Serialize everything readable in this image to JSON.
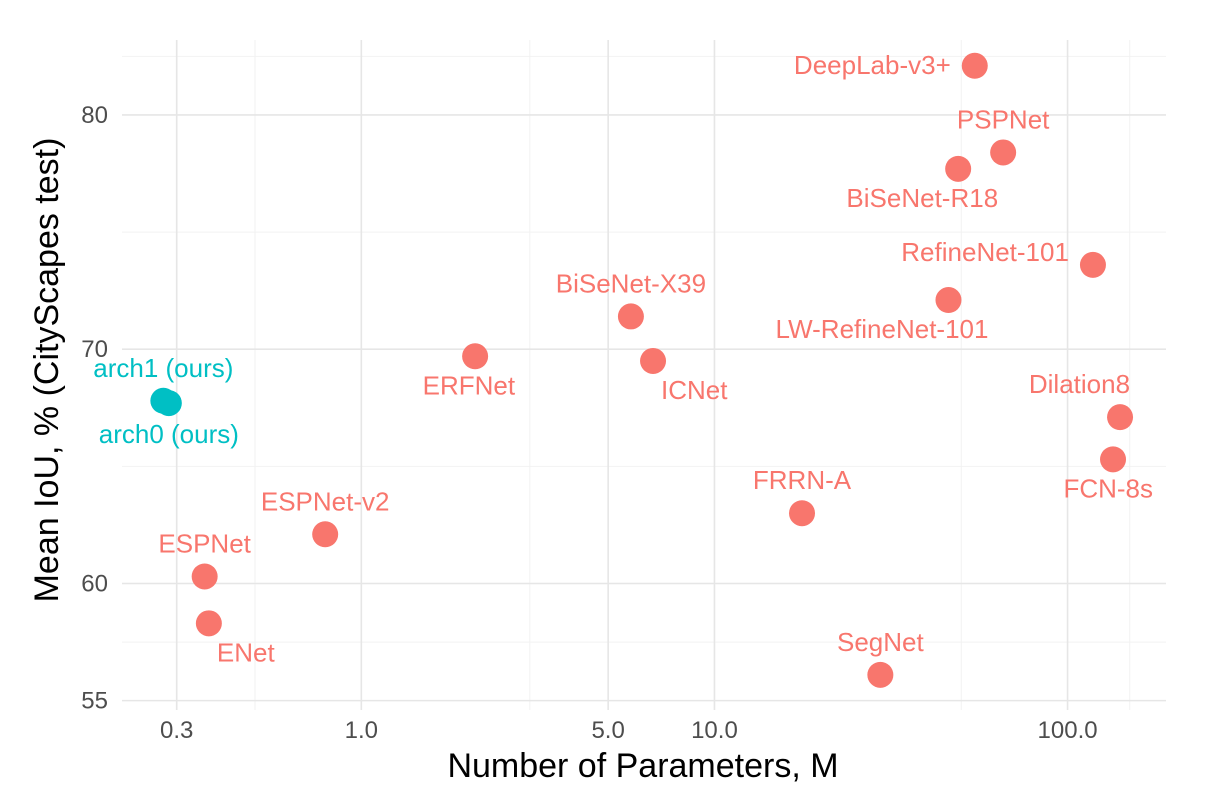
{
  "chart_data": {
    "type": "scatter",
    "xlabel": "Number of Parameters, M",
    "ylabel": "Mean IoU, % (CityScapes test)",
    "x_scale": "log",
    "xlim": [
      0.21,
      190
    ],
    "ylim": [
      54.6,
      83.2
    ],
    "x_ticks": [
      0.3,
      1.0,
      5.0,
      10.0,
      100.0
    ],
    "x_tick_labels": [
      "0.3",
      "1.0",
      "5.0",
      "10.0",
      "100.0"
    ],
    "y_ticks": [
      55,
      60,
      70,
      80
    ],
    "y_tick_labels": [
      "55",
      "60",
      "70",
      "80"
    ],
    "y_minor": [
      57.5,
      65,
      75
    ],
    "grid": true,
    "legend": "none",
    "colors": {
      "ours": "#00BFC4",
      "others": "#F8766D"
    },
    "points": [
      {
        "label": "DeepLab-v3+",
        "x": 54.6,
        "y": 82.1,
        "group": "others",
        "label_pos": "left"
      },
      {
        "label": "PSPNet",
        "x": 65.7,
        "y": 78.4,
        "group": "others",
        "label_pos": "above"
      },
      {
        "label": "BiSeNet-R18",
        "x": 49.0,
        "y": 77.7,
        "group": "others",
        "label_pos": "below-left"
      },
      {
        "label": "RefineNet-101",
        "x": 118.0,
        "y": 73.6,
        "group": "others",
        "label_pos": "left-up"
      },
      {
        "label": "LW-RefineNet-101",
        "x": 46.0,
        "y": 72.1,
        "group": "others",
        "label_pos": "below-left"
      },
      {
        "label": "BiSeNet-X39",
        "x": 5.8,
        "y": 71.4,
        "group": "others",
        "label_pos": "above"
      },
      {
        "label": "ICNet",
        "x": 6.7,
        "y": 69.5,
        "group": "others",
        "label_pos": "below-right"
      },
      {
        "label": "ERFNet",
        "x": 2.1,
        "y": 69.7,
        "group": "others",
        "label_pos": "below-left"
      },
      {
        "label": "Dilation8",
        "x": 140.8,
        "y": 67.1,
        "group": "others",
        "label_pos": "above-left"
      },
      {
        "label": "FCN-8s",
        "x": 134.5,
        "y": 65.3,
        "group": "others",
        "label_pos": "below-left"
      },
      {
        "label": "FRRN-A",
        "x": 17.7,
        "y": 63.0,
        "group": "others",
        "label_pos": "above"
      },
      {
        "label": "ESPNet-v2",
        "x": 0.79,
        "y": 62.1,
        "group": "others",
        "label_pos": "above"
      },
      {
        "label": "ESPNet",
        "x": 0.36,
        "y": 60.3,
        "group": "others",
        "label_pos": "above"
      },
      {
        "label": "ENet",
        "x": 0.37,
        "y": 58.3,
        "group": "others",
        "label_pos": "below-right"
      },
      {
        "label": "SegNet",
        "x": 29.5,
        "y": 56.1,
        "group": "others",
        "label_pos": "above"
      },
      {
        "label": "arch1 (ours)",
        "x": 0.275,
        "y": 67.8,
        "group": "ours",
        "label_pos": "above"
      },
      {
        "label": "arch0 (ours)",
        "x": 0.285,
        "y": 67.7,
        "group": "ours",
        "label_pos": "below"
      }
    ]
  }
}
